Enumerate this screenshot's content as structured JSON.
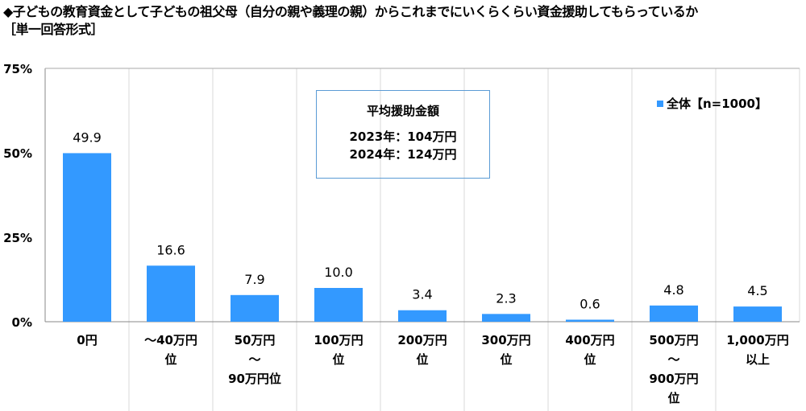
{
  "title": "◆子どもの教育資金として子どもの祖父母（自分の親や義理の親）からこれまでにいくらくらい資金援助してもらっているか",
  "subtitle": "［単一回答形式］",
  "note": {
    "heading": "平均援助金額",
    "lines": [
      "2023年：104万円",
      "2024年：124万円"
    ]
  },
  "colors": {
    "bar": "#3399ff",
    "note_border": "#5b9bd5",
    "grid": "#d9d9d9"
  },
  "chart_data": {
    "type": "bar",
    "categories": [
      "0円",
      "～40万円\n位",
      "50万円\n～\n90万円位",
      "100万円\n位",
      "200万円\n位",
      "300万円\n位",
      "400万円\n位",
      "500万円\n～\n900万円\n位",
      "1,000万円\n以上"
    ],
    "series": [
      {
        "name": "全体【n=1000】",
        "values": [
          49.9,
          16.6,
          7.9,
          10.0,
          3.4,
          2.3,
          0.6,
          4.8,
          4.5
        ]
      }
    ],
    "data_labels": [
      "49.9",
      "16.6",
      "7.9",
      "10.0",
      "3.4",
      "2.3",
      "0.6",
      "4.8",
      "4.5"
    ],
    "yticks": [
      "0%",
      "25%",
      "50%",
      "75%"
    ],
    "ylim": [
      0,
      75
    ],
    "legend": "top-right",
    "grid": "vertical"
  }
}
